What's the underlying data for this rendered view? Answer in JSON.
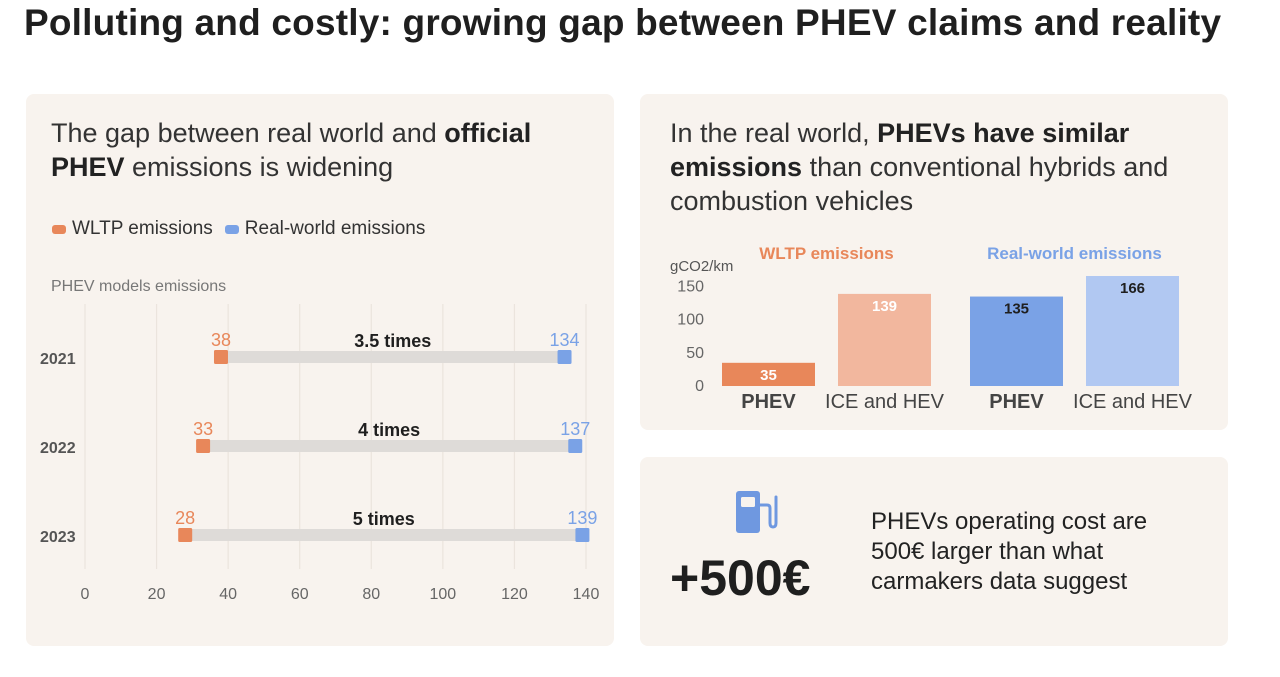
{
  "title": "Polluting and costly: growing gap between PHEV claims and reality",
  "colors": {
    "wltp": "#e8875a",
    "real_world": "#7aa2e6",
    "wltp_light": "#f2b79e",
    "real_world_light": "#b1c8f2",
    "card_bg": "#f8f3ee",
    "range_bar": "#dedbd8"
  },
  "left_panel": {
    "heading_prefix": "The gap between real world and ",
    "heading_bold": "official PHEV",
    "heading_suffix": " emissions is widening",
    "legend": [
      "WLTP emissions",
      "Real-world emissions"
    ],
    "subheading": "PHEV models emissions"
  },
  "right_panel": {
    "heading_prefix": "In the real world, ",
    "heading_bold1": "PHEVs have similar emissions",
    "heading_suffix": " than conventional hybrids and combustion vehicles",
    "group_labels": [
      "WLTP emissions",
      "Real-world emissions"
    ],
    "unit": "gCO2/km"
  },
  "cost_panel": {
    "icon": "fuel-pump-icon",
    "value": "+500€",
    "text": "PHEVs operating cost are 500€ larger than what carmakers data suggest"
  },
  "chart_data": [
    {
      "type": "dumbbell",
      "title": "PHEV models emissions",
      "categories": [
        "2021",
        "2022",
        "2023"
      ],
      "series": [
        {
          "name": "WLTP emissions",
          "values": [
            38,
            33,
            28
          ]
        },
        {
          "name": "Real-world emissions",
          "values": [
            134,
            137,
            139
          ]
        }
      ],
      "annotations": [
        "3.5 times",
        "4 times",
        "5 times"
      ],
      "xlim": [
        0,
        140
      ],
      "xticks": [
        0,
        20,
        40,
        60,
        80,
        100,
        120,
        140
      ],
      "grid": true
    },
    {
      "type": "bar",
      "ylabel": "gCO2/km",
      "categories": [
        "PHEV",
        "ICE and HEV",
        "PHEV",
        "ICE and HEV"
      ],
      "groups": [
        "WLTP emissions",
        "WLTP emissions",
        "Real-world emissions",
        "Real-world emissions"
      ],
      "values": [
        35,
        139,
        135,
        166
      ],
      "ylim": [
        0,
        166
      ],
      "yticks": [
        0,
        50,
        100,
        150
      ]
    }
  ]
}
